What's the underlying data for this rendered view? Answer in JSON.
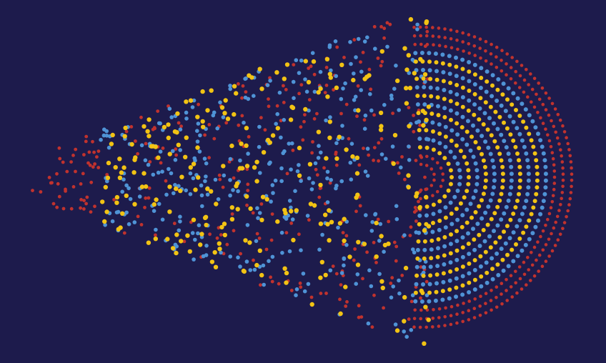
{
  "artwork": {
    "background_color": "#1d1b4c",
    "palette": {
      "red": "#c0322e",
      "blue": "#4f93d6",
      "yellow": "#f2c314"
    },
    "layers": [
      {
        "name": "red-dot-layer",
        "color_key": "red"
      },
      {
        "name": "blue-dot-layer",
        "color_key": "blue"
      },
      {
        "name": "yellow-dot-layer",
        "color_key": "yellow"
      }
    ]
  }
}
